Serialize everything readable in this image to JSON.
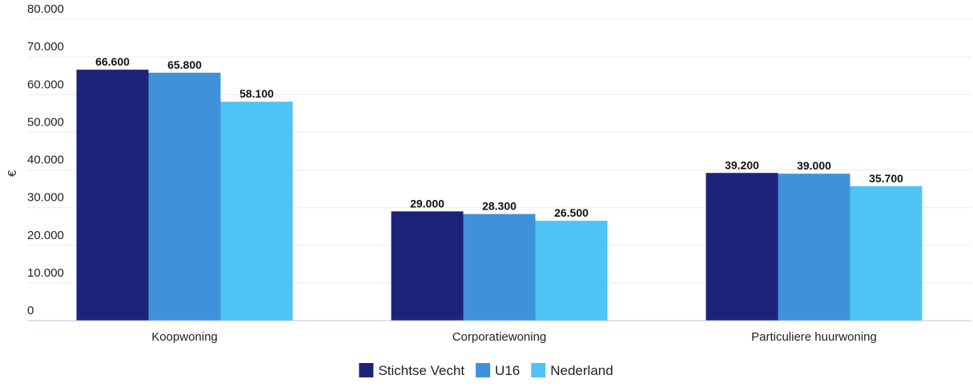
{
  "chart_data": {
    "type": "bar",
    "title": "",
    "xlabel": "",
    "ylabel": "€",
    "ylim": [
      0,
      80000
    ],
    "yticks": [
      0,
      10000,
      20000,
      30000,
      40000,
      50000,
      60000,
      70000,
      80000
    ],
    "ytick_labels": [
      "0",
      "10.000",
      "20.000",
      "30.000",
      "40.000",
      "50.000",
      "60.000",
      "70.000",
      "80.000"
    ],
    "categories": [
      "Koopwoning",
      "Corporatiewoning",
      "Particuliere huurwoning"
    ],
    "series": [
      {
        "name": "Stichtse Vecht",
        "color": "#1e237a",
        "values": [
          66600,
          29000,
          39200
        ],
        "labels": [
          "66.600",
          "29.000",
          "39.200"
        ]
      },
      {
        "name": "U16",
        "color": "#3f92d9",
        "values": [
          65800,
          28300,
          39000
        ],
        "labels": [
          "65.800",
          "28.300",
          "39.000"
        ]
      },
      {
        "name": "Nederland",
        "color": "#4fc3f5",
        "values": [
          58100,
          26500,
          35700
        ],
        "labels": [
          "58.100",
          "26.500",
          "35.700"
        ]
      }
    ],
    "grid": true,
    "legend": "bottom-center"
  }
}
